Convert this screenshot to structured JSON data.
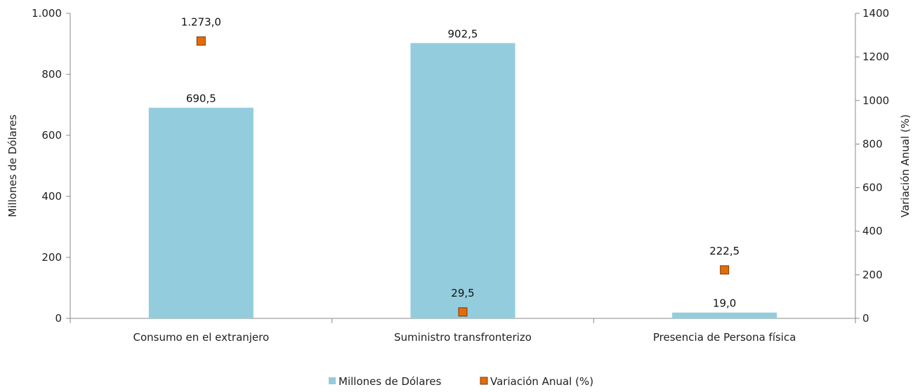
{
  "chart_data": {
    "type": "bar",
    "categories": [
      "Consumo en el extranjero",
      "Suministro transfronterizo",
      "Presencia de Persona física"
    ],
    "series": [
      {
        "name": "Millones de Dólares",
        "kind": "bar",
        "axis": "left",
        "color": "#93cddd",
        "values": [
          690.5,
          902.5,
          19.0
        ],
        "labels": [
          "690,5",
          "902,5",
          "19,0"
        ]
      },
      {
        "name": "Variación Anual (%)",
        "kind": "marker",
        "axis": "right",
        "color": "#e36c0a",
        "values": [
          1273.0,
          29.5,
          222.5
        ],
        "labels": [
          "1.273,0",
          "29,5",
          "222,5"
        ]
      }
    ],
    "y_left": {
      "label": "Millones de Dólares",
      "range": [
        0,
        1000
      ],
      "ticks": [
        0,
        200,
        400,
        600,
        800,
        1000
      ],
      "tick_labels": [
        "0",
        "200",
        "400",
        "600",
        "800",
        "1.000"
      ]
    },
    "y_right": {
      "label": "Variación Anual (%)",
      "range": [
        0,
        1400
      ],
      "ticks": [
        0,
        200,
        400,
        600,
        800,
        1000,
        1200,
        1400
      ],
      "tick_labels": [
        "0",
        "200",
        "400",
        "600",
        "800",
        "1000",
        "1200",
        "1400"
      ]
    },
    "grid": false,
    "legend_position": "bottom"
  }
}
